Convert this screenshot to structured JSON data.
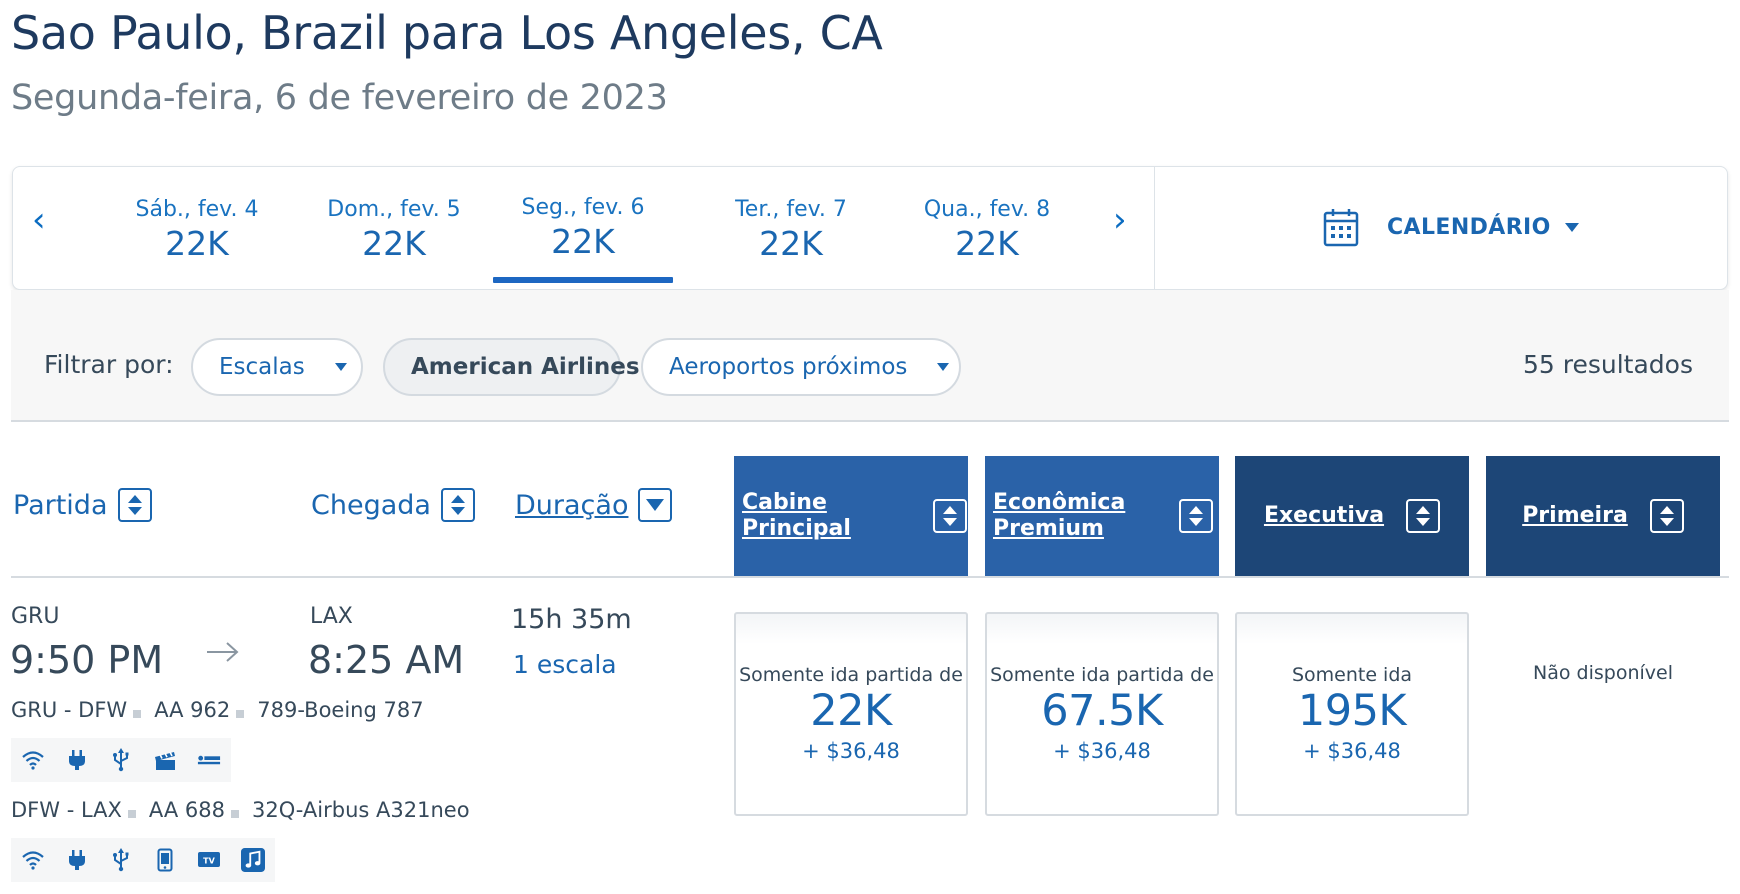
{
  "route": {
    "title": "Sao Paulo, Brazil para Los Angeles, CA",
    "date": "Segunda-feira, 6 de fevereiro de 2023"
  },
  "date_strip": {
    "prev_icon": "chevron-left-icon",
    "next_icon": "chevron-right-icon",
    "dates": [
      {
        "label": "Sáb., fev. 4",
        "price": "22K"
      },
      {
        "label": "Dom., fev. 5",
        "price": "22K"
      },
      {
        "label": "Seg., fev. 6",
        "price": "22K"
      },
      {
        "label": "Ter., fev. 7",
        "price": "22K"
      },
      {
        "label": "Qua., fev. 8",
        "price": "22K"
      }
    ],
    "selected_index": 2,
    "calendar_label": "CALENDÁRIO"
  },
  "filters": {
    "label": "Filtrar por:",
    "stops": "Escalas",
    "airline": "American Airlines",
    "airports": "Aeroportos próximos",
    "results": "55 resultados"
  },
  "columns": {
    "departure": "Partida",
    "arrival": "Chegada",
    "duration": "Duração",
    "cabins": [
      {
        "line1": "Cabine",
        "line2": "Principal"
      },
      {
        "line1": "Econômica",
        "line2": "Premium"
      },
      {
        "line1": "Executiva",
        "line2": ""
      },
      {
        "line1": "Primeira",
        "line2": ""
      }
    ]
  },
  "flight": {
    "origin": "GRU",
    "depart_time": "9:50 PM",
    "destination": "LAX",
    "arrive_time": "8:25 AM",
    "duration": "15h 35m",
    "stops": "1 escala",
    "segments": [
      {
        "route": "GRU - DFW",
        "flight": "AA 962",
        "aircraft": "789-Boeing 787",
        "amenities": [
          "wifi-icon",
          "power-outlet-icon",
          "usb-icon",
          "movie-icon",
          "lie-flat-seat-icon"
        ]
      },
      {
        "route": "DFW - LAX",
        "flight": "AA 688",
        "aircraft": "32Q-Airbus A321neo",
        "amenities": [
          "wifi-icon",
          "power-outlet-icon",
          "usb-icon",
          "device-entertainment-icon",
          "tv-icon",
          "music-icon"
        ]
      }
    ],
    "fares": [
      {
        "label": "Somente ida partida de",
        "miles": "22K",
        "tax": "+ $36,48"
      },
      {
        "label": "Somente ida partida de",
        "miles": "67.5K",
        "tax": "+ $36,48"
      },
      {
        "label": "Somente ida",
        "miles": "195K",
        "tax": "+ $36,48"
      }
    ],
    "first_unavailable": "Não disponível"
  },
  "colors": {
    "link_blue": "#1a66b0",
    "cabin_mid": "#2a62a8",
    "cabin_dark": "#1d4677",
    "text": "#36495a"
  }
}
